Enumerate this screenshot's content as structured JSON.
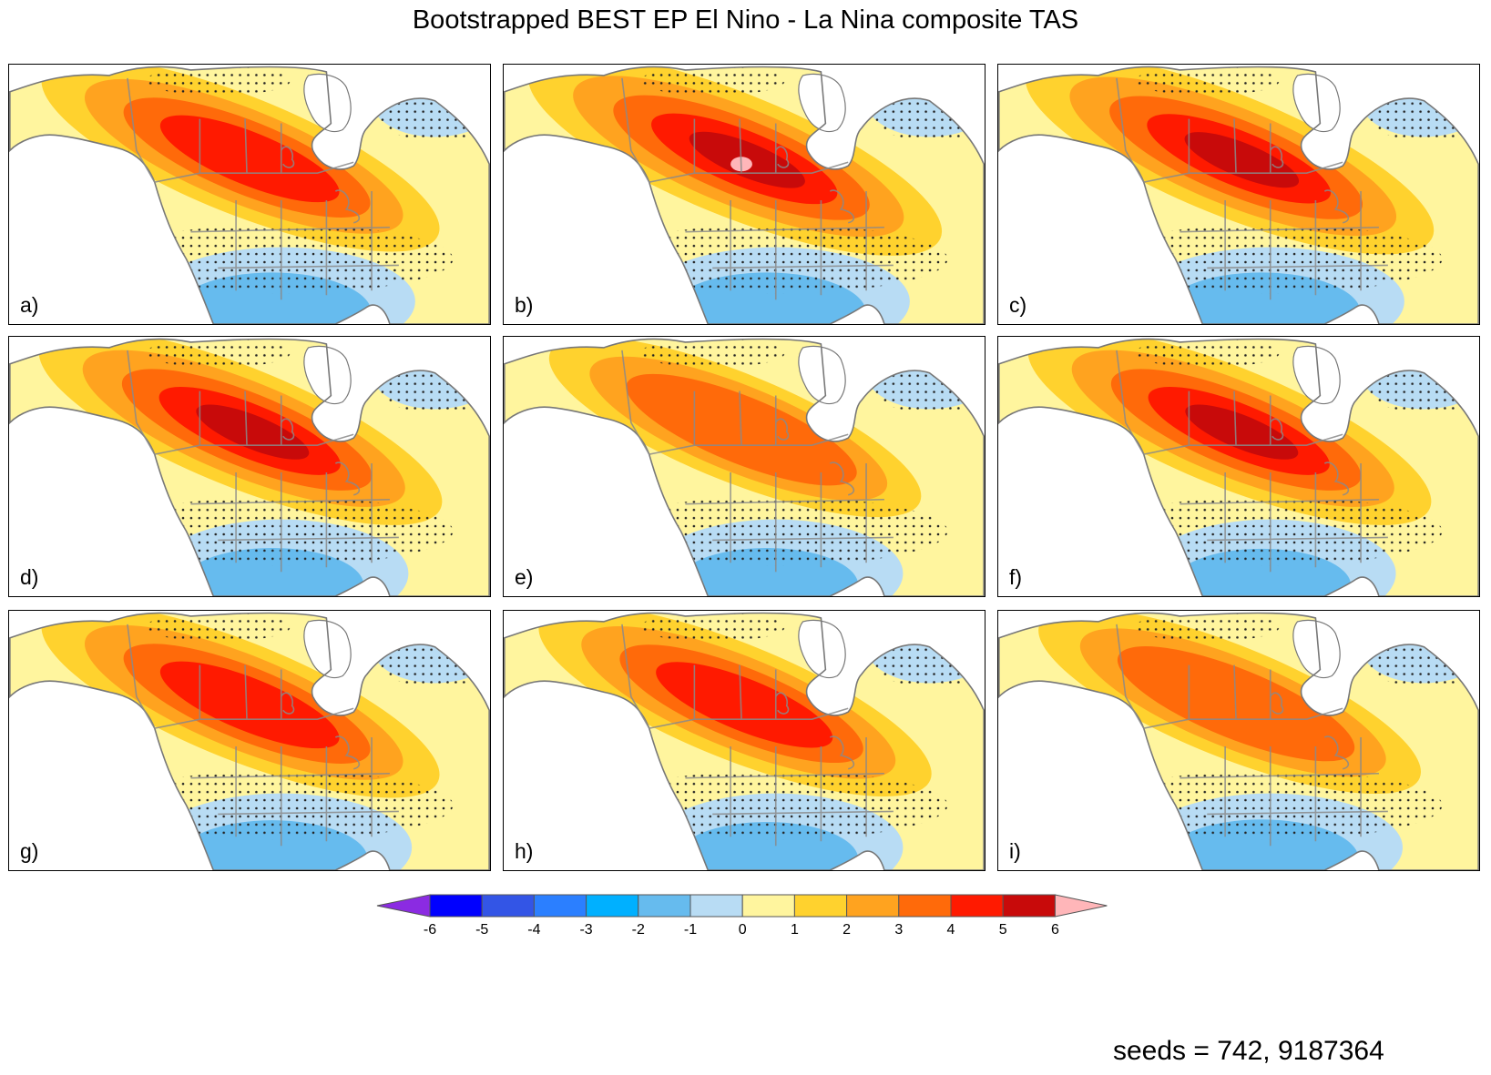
{
  "title": "Bootstrapped BEST EP El Nino - La Nina composite TAS",
  "panels": [
    {
      "label": "a)",
      "intensity": 0.85,
      "cold": 0.75
    },
    {
      "label": "b)",
      "intensity": 1.0,
      "cold": 0.75
    },
    {
      "label": "c)",
      "intensity": 0.95,
      "cold": 0.75
    },
    {
      "label": "d)",
      "intensity": 0.9,
      "cold": 0.55
    },
    {
      "label": "e)",
      "intensity": 0.6,
      "cold": 0.55
    },
    {
      "label": "f)",
      "intensity": 0.9,
      "cold": 0.5
    },
    {
      "label": "g)",
      "intensity": 0.85,
      "cold": 0.65
    },
    {
      "label": "h)",
      "intensity": 0.8,
      "cold": 0.55
    },
    {
      "label": "i)",
      "intensity": 0.7,
      "cold": 0.7
    }
  ],
  "colorbar": {
    "ticks": [
      "-6",
      "-5",
      "-4",
      "-3",
      "-2",
      "-1",
      "0",
      "1",
      "2",
      "3",
      "4",
      "5",
      "6"
    ],
    "colors": [
      "#0000ff",
      "#3355e6",
      "#2b7fff",
      "#00b0ff",
      "#66bbee",
      "#b8dcf4",
      "#fff59e",
      "#ffd22e",
      "#ffa31f",
      "#ff6a0a",
      "#ff1a00",
      "#c80a0a"
    ],
    "low_color": "#8b2be2",
    "high_color": "#ffb6b9"
  },
  "seeds": "seeds = 742, 9187364"
}
